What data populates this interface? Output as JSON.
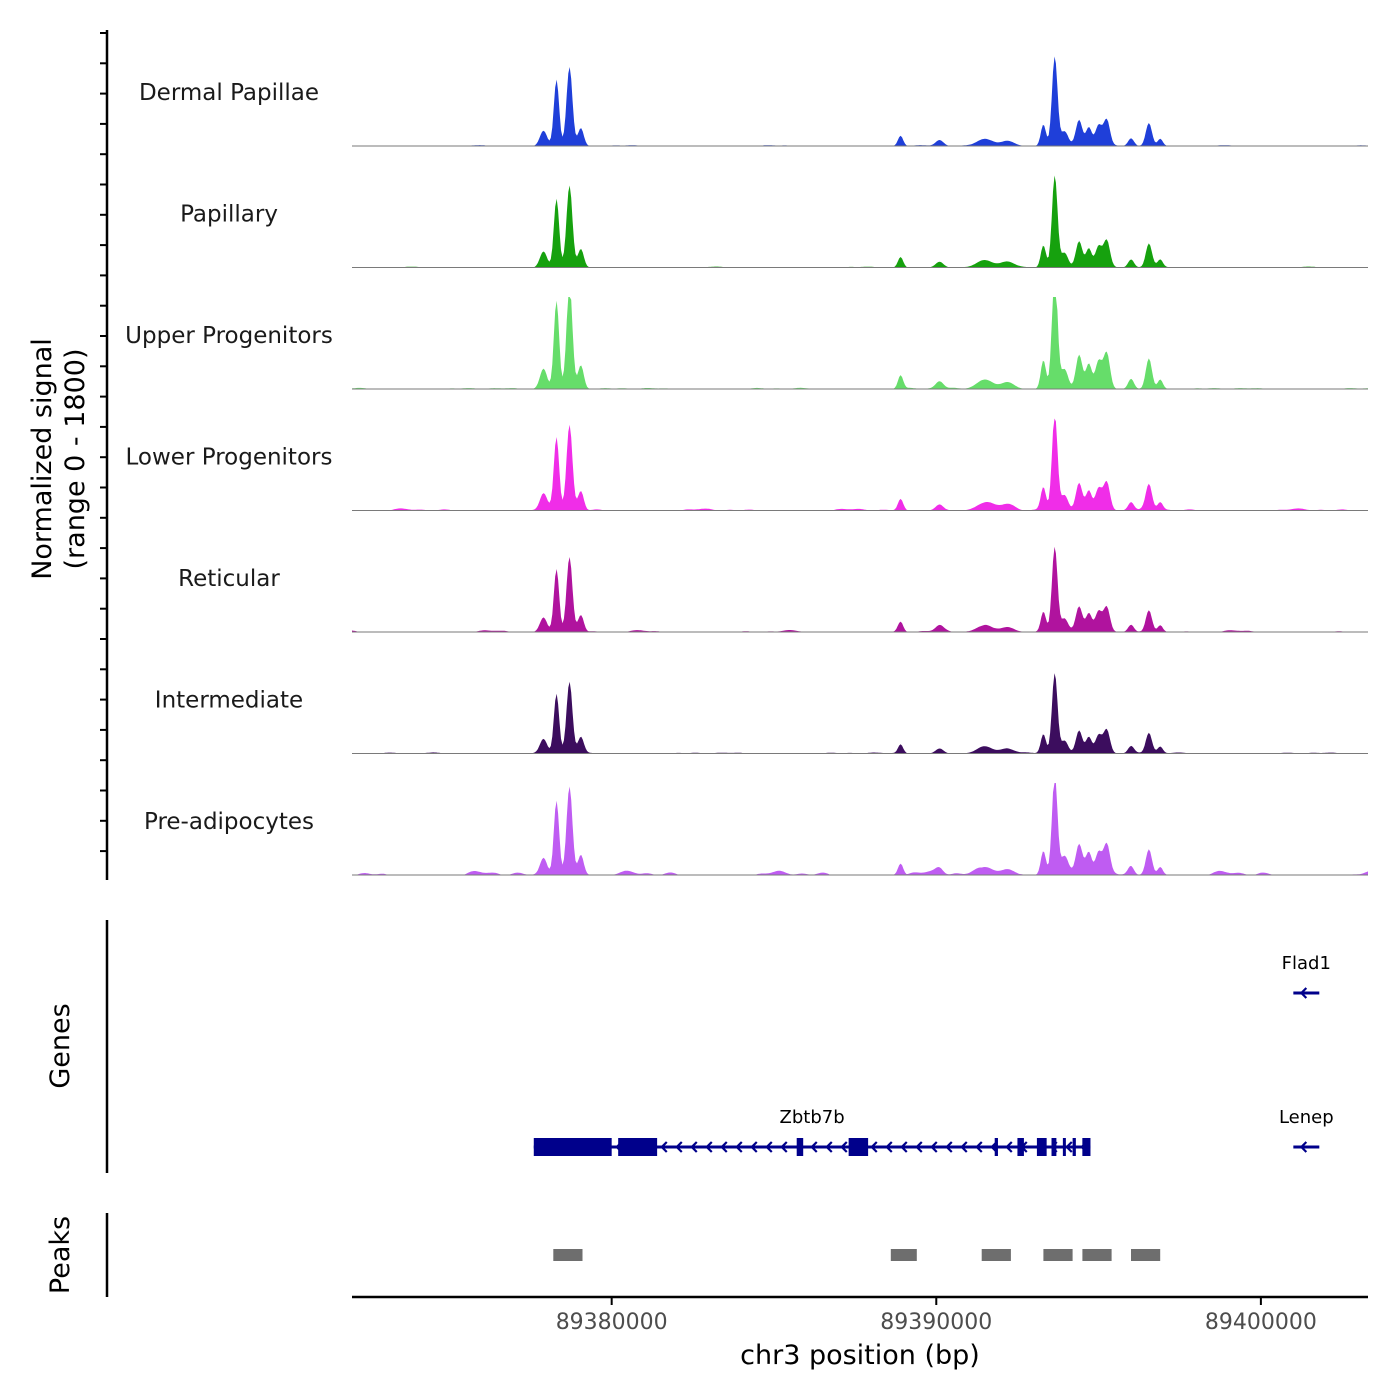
{
  "chart_data": {
    "type": "area",
    "region": {
      "chrom": "chr3",
      "start": 89372000,
      "end": 89403300
    },
    "signal_axis": {
      "label_line1": "Normalized signal",
      "label_line2": "(range 0 - 1800)",
      "range": [
        0,
        1800
      ]
    },
    "x_axis": {
      "label": "chr3 position (bp)",
      "ticks": [
        89380000,
        89390000,
        89400000
      ],
      "tick_labels": [
        "89380000",
        "89390000",
        "89400000"
      ]
    },
    "peaks_pattern": [
      {
        "c": 89378300,
        "w": 80,
        "h": 1300
      },
      {
        "c": 89378700,
        "w": 90,
        "h": 1550
      },
      {
        "c": 89377900,
        "w": 110,
        "h": 300
      },
      {
        "c": 89379050,
        "w": 90,
        "h": 350
      },
      {
        "c": 89388900,
        "w": 80,
        "h": 200
      },
      {
        "c": 89390100,
        "w": 120,
        "h": 110
      },
      {
        "c": 89391500,
        "w": 250,
        "h": 140
      },
      {
        "c": 89392200,
        "w": 200,
        "h": 100
      },
      {
        "c": 89393300,
        "w": 80,
        "h": 420
      },
      {
        "c": 89393650,
        "w": 85,
        "h": 1750
      },
      {
        "c": 89393950,
        "w": 110,
        "h": 280
      },
      {
        "c": 89394400,
        "w": 100,
        "h": 500
      },
      {
        "c": 89394700,
        "w": 90,
        "h": 360
      },
      {
        "c": 89395000,
        "w": 100,
        "h": 400
      },
      {
        "c": 89395250,
        "w": 100,
        "h": 520
      },
      {
        "c": 89396000,
        "w": 90,
        "h": 150
      },
      {
        "c": 89396550,
        "w": 95,
        "h": 450
      },
      {
        "c": 89396900,
        "w": 80,
        "h": 140
      }
    ],
    "tracks": [
      {
        "name": "Dermal Papillae",
        "color": "#1f3fd9",
        "scale": 1.0,
        "noise": 1.0
      },
      {
        "name": "Papillary",
        "color": "#16a10e",
        "scale": 1.03,
        "noise": 1.0
      },
      {
        "name": "Upper Progenitors",
        "color": "#66dd6a",
        "scale": 1.33,
        "noise": 1.6
      },
      {
        "name": "Lower Progenitors",
        "color": "#f02de8",
        "scale": 1.08,
        "noise": 2.4
      },
      {
        "name": "Reticular",
        "color": "#b0139e",
        "scale": 0.95,
        "noise": 2.2
      },
      {
        "name": "Intermediate",
        "color": "#3c0d5e",
        "scale": 0.9,
        "noise": 1.4
      },
      {
        "name": "Pre-adipocytes",
        "color": "#bf5cf2",
        "scale": 1.12,
        "noise": 5.0
      }
    ],
    "genes_axis_label": "Genes",
    "genes": [
      {
        "name": "Zbtb7b",
        "start": 89377600,
        "end": 89394750,
        "strand": "-",
        "exons": [
          [
            89377600,
            89380000
          ],
          [
            89380200,
            89381400
          ],
          [
            89385700,
            89385900
          ],
          [
            89387300,
            89387900
          ],
          [
            89391800,
            89391900
          ],
          [
            89392500,
            89392700
          ],
          [
            89393100,
            89393400
          ],
          [
            89393550,
            89393700
          ],
          [
            89393900,
            89393950
          ],
          [
            89394200,
            89394300
          ],
          [
            89394500,
            89394750
          ]
        ]
      },
      {
        "name": "Flad1",
        "start": 89401000,
        "end": 89401800,
        "strand": "-",
        "exons": []
      },
      {
        "name": "Lenep",
        "start": 89401000,
        "end": 89401800,
        "strand": "-",
        "exons": []
      }
    ],
    "peaks_axis_label": "Peaks",
    "peaks": [
      [
        89378200,
        89379100
      ],
      [
        89388600,
        89389400
      ],
      [
        89391400,
        89392300
      ],
      [
        89393300,
        89394200
      ],
      [
        89394500,
        89395400
      ],
      [
        89396000,
        89396900
      ]
    ]
  }
}
